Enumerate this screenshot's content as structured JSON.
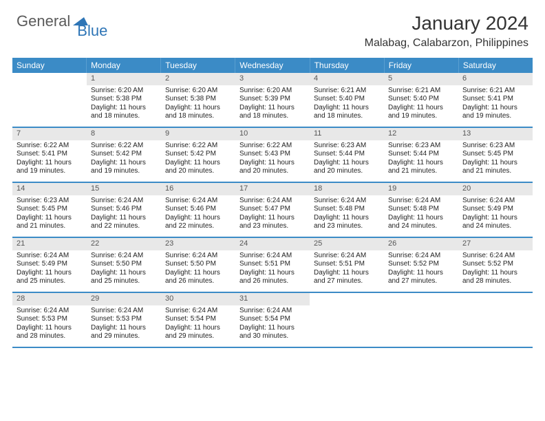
{
  "logo": {
    "text1": "General",
    "text2": "Blue"
  },
  "title": "January 2024",
  "location": "Malabag, Calabarzon, Philippines",
  "colors": {
    "header_bg": "#3b8bc6",
    "daynum_bg": "#e8e8e8",
    "row_border": "#3b8bc6",
    "logo_gray": "#5a5a5a",
    "logo_blue": "#2e75b6"
  },
  "weekdays": [
    "Sunday",
    "Monday",
    "Tuesday",
    "Wednesday",
    "Thursday",
    "Friday",
    "Saturday"
  ],
  "weeks": [
    [
      {
        "day": "",
        "sunrise": "",
        "sunset": "",
        "daylight1": "",
        "daylight2": "",
        "empty": true
      },
      {
        "day": "1",
        "sunrise": "Sunrise: 6:20 AM",
        "sunset": "Sunset: 5:38 PM",
        "daylight1": "Daylight: 11 hours",
        "daylight2": "and 18 minutes."
      },
      {
        "day": "2",
        "sunrise": "Sunrise: 6:20 AM",
        "sunset": "Sunset: 5:38 PM",
        "daylight1": "Daylight: 11 hours",
        "daylight2": "and 18 minutes."
      },
      {
        "day": "3",
        "sunrise": "Sunrise: 6:20 AM",
        "sunset": "Sunset: 5:39 PM",
        "daylight1": "Daylight: 11 hours",
        "daylight2": "and 18 minutes."
      },
      {
        "day": "4",
        "sunrise": "Sunrise: 6:21 AM",
        "sunset": "Sunset: 5:40 PM",
        "daylight1": "Daylight: 11 hours",
        "daylight2": "and 18 minutes."
      },
      {
        "day": "5",
        "sunrise": "Sunrise: 6:21 AM",
        "sunset": "Sunset: 5:40 PM",
        "daylight1": "Daylight: 11 hours",
        "daylight2": "and 19 minutes."
      },
      {
        "day": "6",
        "sunrise": "Sunrise: 6:21 AM",
        "sunset": "Sunset: 5:41 PM",
        "daylight1": "Daylight: 11 hours",
        "daylight2": "and 19 minutes."
      }
    ],
    [
      {
        "day": "7",
        "sunrise": "Sunrise: 6:22 AM",
        "sunset": "Sunset: 5:41 PM",
        "daylight1": "Daylight: 11 hours",
        "daylight2": "and 19 minutes."
      },
      {
        "day": "8",
        "sunrise": "Sunrise: 6:22 AM",
        "sunset": "Sunset: 5:42 PM",
        "daylight1": "Daylight: 11 hours",
        "daylight2": "and 19 minutes."
      },
      {
        "day": "9",
        "sunrise": "Sunrise: 6:22 AM",
        "sunset": "Sunset: 5:42 PM",
        "daylight1": "Daylight: 11 hours",
        "daylight2": "and 20 minutes."
      },
      {
        "day": "10",
        "sunrise": "Sunrise: 6:22 AM",
        "sunset": "Sunset: 5:43 PM",
        "daylight1": "Daylight: 11 hours",
        "daylight2": "and 20 minutes."
      },
      {
        "day": "11",
        "sunrise": "Sunrise: 6:23 AM",
        "sunset": "Sunset: 5:44 PM",
        "daylight1": "Daylight: 11 hours",
        "daylight2": "and 20 minutes."
      },
      {
        "day": "12",
        "sunrise": "Sunrise: 6:23 AM",
        "sunset": "Sunset: 5:44 PM",
        "daylight1": "Daylight: 11 hours",
        "daylight2": "and 21 minutes."
      },
      {
        "day": "13",
        "sunrise": "Sunrise: 6:23 AM",
        "sunset": "Sunset: 5:45 PM",
        "daylight1": "Daylight: 11 hours",
        "daylight2": "and 21 minutes."
      }
    ],
    [
      {
        "day": "14",
        "sunrise": "Sunrise: 6:23 AM",
        "sunset": "Sunset: 5:45 PM",
        "daylight1": "Daylight: 11 hours",
        "daylight2": "and 21 minutes."
      },
      {
        "day": "15",
        "sunrise": "Sunrise: 6:24 AM",
        "sunset": "Sunset: 5:46 PM",
        "daylight1": "Daylight: 11 hours",
        "daylight2": "and 22 minutes."
      },
      {
        "day": "16",
        "sunrise": "Sunrise: 6:24 AM",
        "sunset": "Sunset: 5:46 PM",
        "daylight1": "Daylight: 11 hours",
        "daylight2": "and 22 minutes."
      },
      {
        "day": "17",
        "sunrise": "Sunrise: 6:24 AM",
        "sunset": "Sunset: 5:47 PM",
        "daylight1": "Daylight: 11 hours",
        "daylight2": "and 23 minutes."
      },
      {
        "day": "18",
        "sunrise": "Sunrise: 6:24 AM",
        "sunset": "Sunset: 5:48 PM",
        "daylight1": "Daylight: 11 hours",
        "daylight2": "and 23 minutes."
      },
      {
        "day": "19",
        "sunrise": "Sunrise: 6:24 AM",
        "sunset": "Sunset: 5:48 PM",
        "daylight1": "Daylight: 11 hours",
        "daylight2": "and 24 minutes."
      },
      {
        "day": "20",
        "sunrise": "Sunrise: 6:24 AM",
        "sunset": "Sunset: 5:49 PM",
        "daylight1": "Daylight: 11 hours",
        "daylight2": "and 24 minutes."
      }
    ],
    [
      {
        "day": "21",
        "sunrise": "Sunrise: 6:24 AM",
        "sunset": "Sunset: 5:49 PM",
        "daylight1": "Daylight: 11 hours",
        "daylight2": "and 25 minutes."
      },
      {
        "day": "22",
        "sunrise": "Sunrise: 6:24 AM",
        "sunset": "Sunset: 5:50 PM",
        "daylight1": "Daylight: 11 hours",
        "daylight2": "and 25 minutes."
      },
      {
        "day": "23",
        "sunrise": "Sunrise: 6:24 AM",
        "sunset": "Sunset: 5:50 PM",
        "daylight1": "Daylight: 11 hours",
        "daylight2": "and 26 minutes."
      },
      {
        "day": "24",
        "sunrise": "Sunrise: 6:24 AM",
        "sunset": "Sunset: 5:51 PM",
        "daylight1": "Daylight: 11 hours",
        "daylight2": "and 26 minutes."
      },
      {
        "day": "25",
        "sunrise": "Sunrise: 6:24 AM",
        "sunset": "Sunset: 5:51 PM",
        "daylight1": "Daylight: 11 hours",
        "daylight2": "and 27 minutes."
      },
      {
        "day": "26",
        "sunrise": "Sunrise: 6:24 AM",
        "sunset": "Sunset: 5:52 PM",
        "daylight1": "Daylight: 11 hours",
        "daylight2": "and 27 minutes."
      },
      {
        "day": "27",
        "sunrise": "Sunrise: 6:24 AM",
        "sunset": "Sunset: 5:52 PM",
        "daylight1": "Daylight: 11 hours",
        "daylight2": "and 28 minutes."
      }
    ],
    [
      {
        "day": "28",
        "sunrise": "Sunrise: 6:24 AM",
        "sunset": "Sunset: 5:53 PM",
        "daylight1": "Daylight: 11 hours",
        "daylight2": "and 28 minutes."
      },
      {
        "day": "29",
        "sunrise": "Sunrise: 6:24 AM",
        "sunset": "Sunset: 5:53 PM",
        "daylight1": "Daylight: 11 hours",
        "daylight2": "and 29 minutes."
      },
      {
        "day": "30",
        "sunrise": "Sunrise: 6:24 AM",
        "sunset": "Sunset: 5:54 PM",
        "daylight1": "Daylight: 11 hours",
        "daylight2": "and 29 minutes."
      },
      {
        "day": "31",
        "sunrise": "Sunrise: 6:24 AM",
        "sunset": "Sunset: 5:54 PM",
        "daylight1": "Daylight: 11 hours",
        "daylight2": "and 30 minutes."
      },
      {
        "day": "",
        "sunrise": "",
        "sunset": "",
        "daylight1": "",
        "daylight2": "",
        "empty": true
      },
      {
        "day": "",
        "sunrise": "",
        "sunset": "",
        "daylight1": "",
        "daylight2": "",
        "empty": true
      },
      {
        "day": "",
        "sunrise": "",
        "sunset": "",
        "daylight1": "",
        "daylight2": "",
        "empty": true
      }
    ]
  ]
}
